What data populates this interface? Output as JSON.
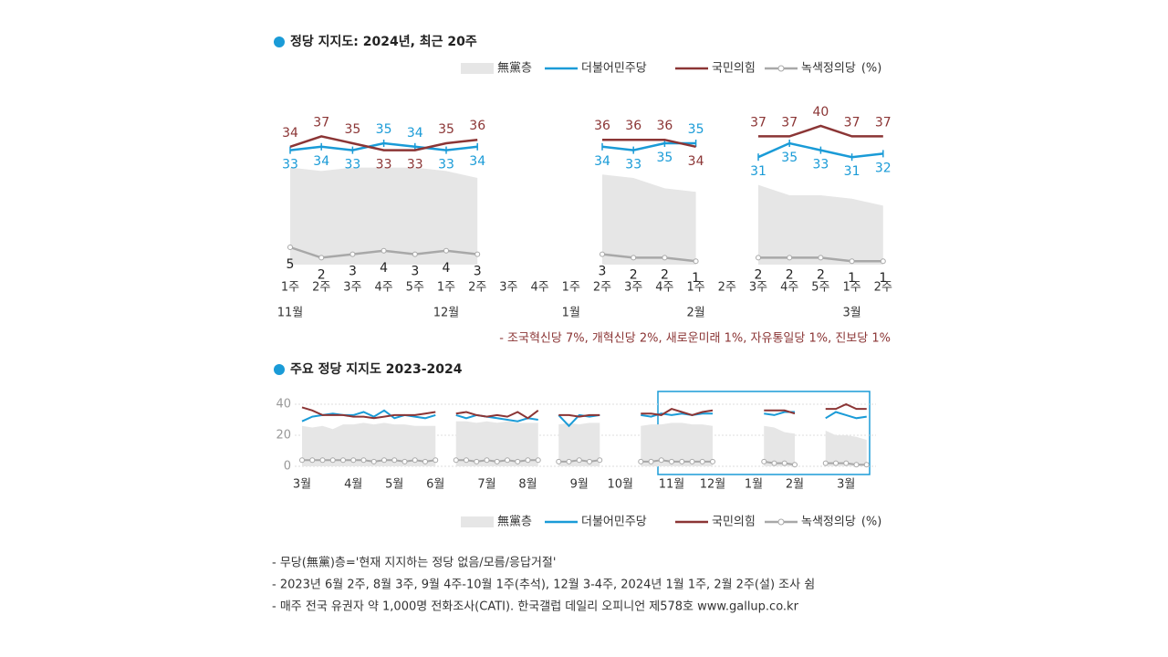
{
  "chart_data": [
    {
      "type": "line",
      "title": "정당 지지도: 2024년, 최근 20주",
      "data_labels": true,
      "unit": "(%)",
      "categories": [
        "1주",
        "2주",
        "3주",
        "4주",
        "5주",
        "1주",
        "2주",
        "3주",
        "4주",
        "1주",
        "2주",
        "3주",
        "4주",
        "1주",
        "2주",
        "3주",
        "4주",
        "5주",
        "1주",
        "2주"
      ],
      "months": [
        "11월",
        null,
        null,
        null,
        null,
        "12월",
        null,
        null,
        null,
        "1월",
        null,
        null,
        null,
        "2월",
        null,
        null,
        null,
        null,
        "3월",
        null
      ],
      "ylim": [
        0,
        50
      ],
      "series": [
        {
          "name": "無黨층",
          "color": "#e6e6e6",
          "style": "area",
          "values": [
            28,
            27,
            28,
            28,
            28,
            27,
            25,
            null,
            null,
            null,
            26,
            25,
            22,
            21,
            null,
            23,
            20,
            20,
            19,
            17
          ]
        },
        {
          "name": "더불어민주당",
          "color": "#1a9bd7",
          "values": [
            33,
            34,
            33,
            35,
            34,
            33,
            34,
            null,
            null,
            null,
            34,
            33,
            35,
            35,
            null,
            31,
            35,
            33,
            31,
            32
          ]
        },
        {
          "name": "국민의힘",
          "color": "#8b3535",
          "values": [
            34,
            37,
            35,
            33,
            33,
            35,
            36,
            null,
            null,
            null,
            36,
            36,
            36,
            34,
            null,
            37,
            37,
            40,
            37,
            37
          ]
        },
        {
          "name": "녹색정의당",
          "color": "#a8a8a8",
          "values": [
            5,
            2,
            3,
            4,
            3,
            4,
            3,
            null,
            null,
            null,
            3,
            2,
            2,
            1,
            null,
            2,
            2,
            2,
            1,
            1
          ]
        }
      ],
      "note": "- 조국혁신당 7%, 개혁신당 2%, 새로운미래 1%, 자유통일당 1%, 진보당 1%"
    },
    {
      "type": "line",
      "title": "주요 정당 지지도 2023-2024",
      "unit": "(%)",
      "grid": true,
      "categories": [
        "3월",
        null,
        null,
        null,
        null,
        "4월",
        null,
        null,
        null,
        "5월",
        null,
        null,
        null,
        "6월",
        null,
        null,
        null,
        null,
        "7월",
        null,
        null,
        null,
        "8월",
        null,
        null,
        null,
        null,
        "9월",
        null,
        null,
        null,
        "10월",
        null,
        null,
        null,
        null,
        "11월",
        null,
        null,
        null,
        "12월",
        null,
        null,
        null,
        "1월",
        null,
        null,
        null,
        "2월",
        null,
        null,
        null,
        null,
        "3월",
        null,
        null
      ],
      "ylim": [
        0,
        40
      ],
      "yticks": [
        0,
        20,
        40
      ],
      "series": [
        {
          "name": "無黨층",
          "color": "#e6e6e6",
          "style": "area",
          "values": [
            26,
            25,
            26,
            24,
            27,
            27,
            28,
            27,
            28,
            27,
            27,
            26,
            26,
            26,
            null,
            29,
            29,
            28,
            29,
            28,
            29,
            28,
            28,
            28,
            null,
            27,
            28,
            27,
            28,
            28,
            null,
            null,
            null,
            26,
            27,
            27,
            28,
            28,
            27,
            27,
            26,
            null,
            null,
            null,
            null,
            26,
            25,
            22,
            21,
            null,
            null,
            23,
            20,
            20,
            19,
            17
          ]
        },
        {
          "name": "더불어민주당",
          "color": "#1a9bd7",
          "values": [
            29,
            32,
            33,
            34,
            33,
            33,
            35,
            32,
            36,
            31,
            33,
            32,
            31,
            33,
            null,
            33,
            31,
            33,
            32,
            31,
            30,
            29,
            31,
            30,
            null,
            33,
            26,
            33,
            32,
            33,
            null,
            null,
            null,
            33,
            32,
            34,
            33,
            34,
            33,
            34,
            34,
            null,
            null,
            null,
            null,
            34,
            33,
            35,
            35,
            null,
            null,
            31,
            35,
            33,
            31,
            32
          ]
        },
        {
          "name": "국민의힘",
          "color": "#8b3535",
          "values": [
            38,
            36,
            33,
            33,
            33,
            32,
            32,
            31,
            32,
            33,
            33,
            33,
            34,
            35,
            null,
            34,
            35,
            33,
            32,
            33,
            32,
            35,
            31,
            36,
            null,
            33,
            33,
            32,
            33,
            33,
            null,
            null,
            null,
            34,
            34,
            33,
            37,
            35,
            33,
            35,
            36,
            null,
            null,
            null,
            null,
            36,
            36,
            36,
            34,
            null,
            null,
            37,
            37,
            40,
            37,
            37
          ]
        },
        {
          "name": "녹색정의당",
          "color": "#a8a8a8",
          "values": [
            4,
            4,
            4,
            4,
            4,
            4,
            4,
            3,
            4,
            4,
            3,
            4,
            3,
            4,
            null,
            4,
            4,
            3,
            4,
            3,
            4,
            3,
            4,
            4,
            null,
            3,
            3,
            4,
            3,
            4,
            null,
            null,
            null,
            3,
            3,
            4,
            3,
            3,
            3,
            3,
            3,
            null,
            null,
            null,
            null,
            3,
            2,
            2,
            1,
            null,
            null,
            2,
            2,
            2,
            1,
            1
          ]
        }
      ]
    }
  ],
  "footnotes": [
    "- 무당(無黨)층='현재 지지하는 정당 없음/모름/응답거절'",
    "- 2023년 6월 2주, 8월 3주, 9월 4주-10월 1주(추석), 12월 3-4주, 2024년 1월 1주, 2월 2주(설) 조사 쉼",
    "- 매주 전국 유권자 약 1,000명 전화조사(CATI). 한국갤럽 데일리 오피니언 제578호 www.gallup.co.kr"
  ]
}
